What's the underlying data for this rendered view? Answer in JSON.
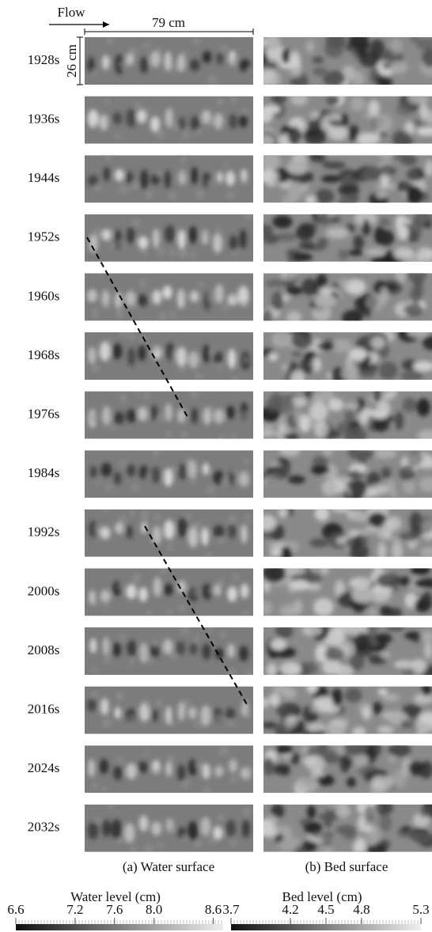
{
  "figure": {
    "flow_label": "Flow",
    "width_label": "79 cm",
    "height_label": "26 cm",
    "times": [
      "1928s",
      "1936s",
      "1944s",
      "1952s",
      "1960s",
      "1968s",
      "1976s",
      "1984s",
      "1992s",
      "2000s",
      "2008s",
      "2016s",
      "2024s",
      "2032s"
    ],
    "captions": [
      "(a) Water surface",
      "(b) Bed surface"
    ],
    "colorbars": [
      {
        "title": "Water level (cm)",
        "lim": [
          6.6,
          8.7
        ],
        "ticks": [
          6.6,
          7.2,
          7.6,
          {
            "value": 8,
            "label": "8.0"
          },
          8.6
        ]
      },
      {
        "title": "Bed level (cm)",
        "lim": [
          3.7,
          5.3
        ],
        "ticks": [
          3.7,
          4.2,
          4.5,
          4.8,
          5.3
        ]
      }
    ]
  }
}
